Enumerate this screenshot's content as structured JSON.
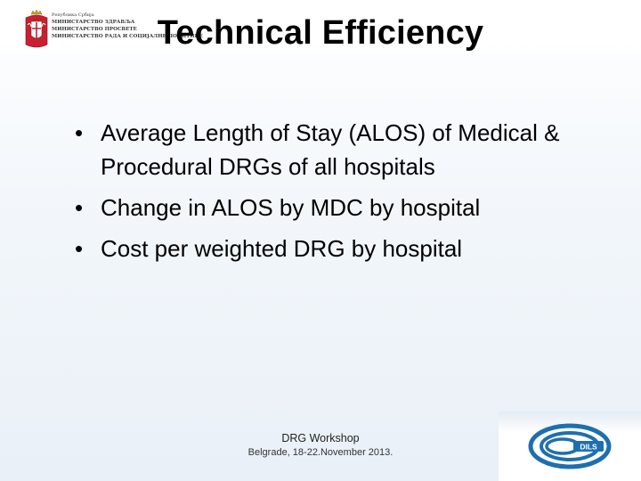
{
  "slide": {
    "title": "Technical Efficiency",
    "bullets": [
      "Average Length of Stay (ALOS) of Medical & Procedural DRGs of all hospitals",
      "Change in ALOS by MDC by hospital",
      "Cost per weighted DRG by hospital"
    ],
    "bullet_symbol": "•"
  },
  "header_logo": {
    "lines": [
      "Република Србија",
      "МИНИСТАРСТВО ЗДРАВЉА",
      "МИНИСТАРСТВО ПРОСВЕТЕ",
      "МИНИСТАРСТВО РАДА И СОЦИЈАЛНЕ ПОЛИТИКЕ"
    ],
    "icon": "coat-of-arms-icon"
  },
  "footer": {
    "line1": "DRG Workshop",
    "line2": "Belgrade, 18-22.November 2013."
  },
  "footer_logo": {
    "text": "DILS",
    "icon": "dils-logo-icon"
  },
  "colors": {
    "logo_blue": "#1e6fb0",
    "coat_red": "#c8202f"
  }
}
